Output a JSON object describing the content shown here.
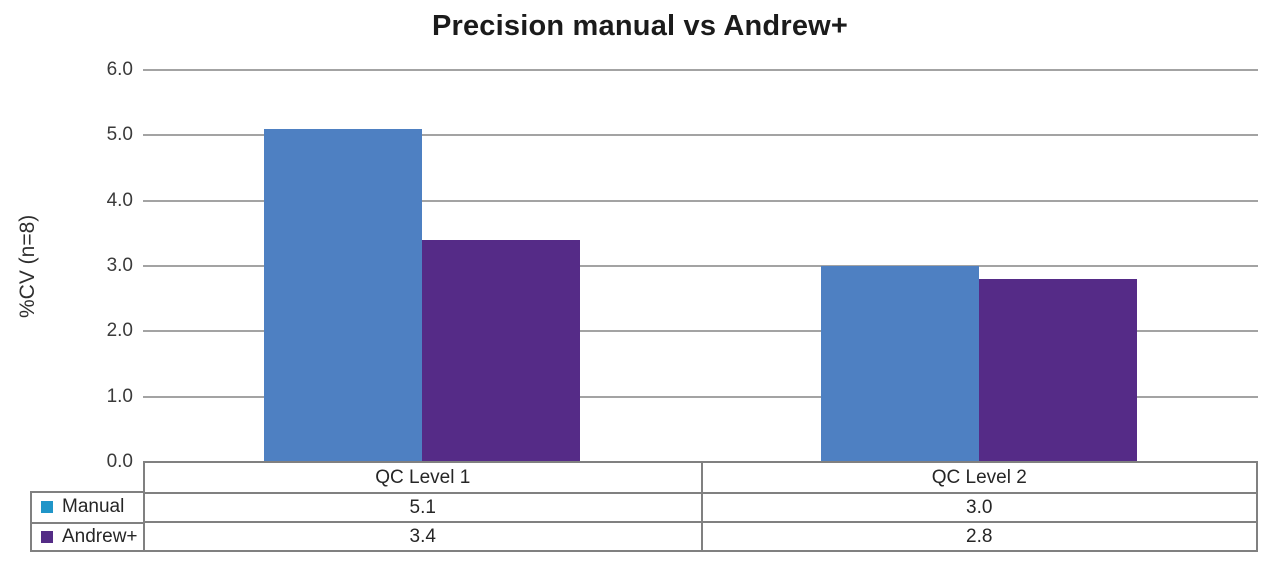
{
  "chart_data": {
    "type": "bar",
    "title": "Precision manual vs Andrew+",
    "ylabel": "%CV (n=8)",
    "xlabel": "",
    "categories": [
      "QC Level 1",
      "QC Level 2"
    ],
    "series": [
      {
        "name": "Manual",
        "values": [
          5.1,
          3.0
        ],
        "bar_color": "#4e80c2",
        "legend_marker_color": "#2095c8"
      },
      {
        "name": "Andrew+",
        "values": [
          3.4,
          2.8
        ],
        "bar_color": "#552b87",
        "legend_marker_color": "#542c86"
      }
    ],
    "ylim": [
      0,
      6
    ],
    "yticks": [
      0,
      1,
      2,
      3,
      4,
      5,
      6
    ],
    "ytick_labels": [
      "0.0",
      "1.0",
      "2.0",
      "3.0",
      "4.0",
      "5.0",
      "6.0"
    ],
    "grid": true,
    "gridline_color": "#a3a3a3",
    "legend_position": "bottom-left-table"
  },
  "data_table": {
    "column_headers": [
      "QC Level 1",
      "QC Level 2"
    ],
    "rows": [
      {
        "legend_label": "Manual",
        "values": [
          "5.1",
          "3.0"
        ]
      },
      {
        "legend_label": "Andrew+",
        "values": [
          "3.4",
          "2.8"
        ]
      }
    ],
    "border_color": "#808080"
  }
}
